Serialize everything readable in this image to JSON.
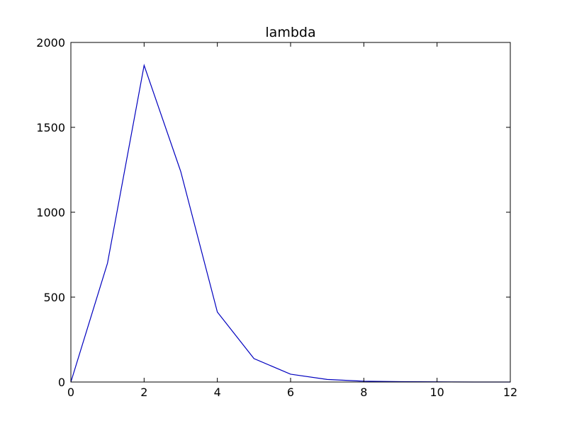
{
  "chart_data": {
    "type": "line",
    "title": "lambda",
    "xlabel": "",
    "ylabel": "",
    "xlim": [
      0,
      12
    ],
    "ylim": [
      0,
      2000
    ],
    "xticks": [
      0,
      2,
      4,
      6,
      8,
      10,
      12
    ],
    "yticks": [
      0,
      500,
      1000,
      1500,
      2000
    ],
    "xtick_labels": [
      "0",
      "2",
      "4",
      "6",
      "8",
      "10",
      "12"
    ],
    "ytick_labels": [
      "0",
      "500",
      "1000",
      "1500",
      "2000"
    ],
    "grid": false,
    "legend": "none",
    "series": [
      {
        "color": "#0000bf",
        "x": [
          0,
          1,
          2,
          3,
          4,
          5,
          6,
          7,
          8,
          9,
          10,
          11,
          12
        ],
        "y": [
          0,
          700,
          1865,
          1240,
          412,
          138,
          46,
          15,
          5,
          2,
          1,
          0,
          0
        ]
      }
    ]
  }
}
